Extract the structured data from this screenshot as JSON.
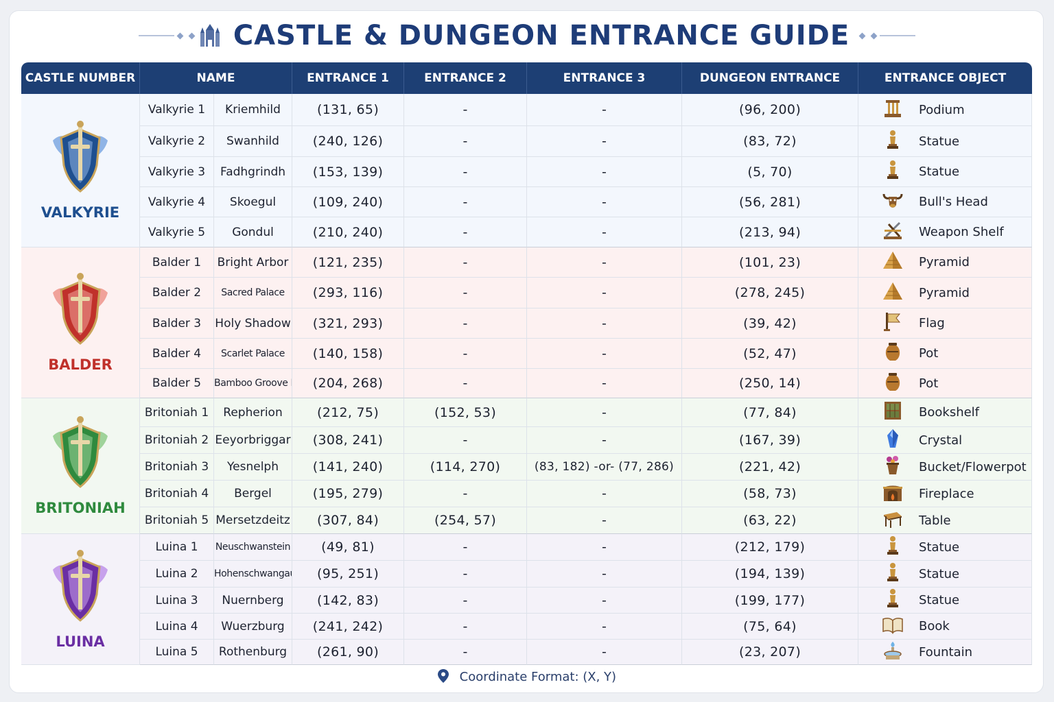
{
  "title": "CASTLE & DUNGEON ENTRANCE GUIDE",
  "footer": "Coordinate Format: (X, Y)",
  "headers": {
    "castle_number": "CASTLE NUMBER",
    "name": "NAME",
    "entrance1": "ENTRANCE 1",
    "entrance2": "ENTRANCE 2",
    "entrance3": "ENTRANCE 3",
    "dungeon": "DUNGEON ENTRANCE",
    "object": "ENTRANCE OBJECT"
  },
  "colors": {
    "header": "#1d3f74",
    "valkyrie": "#1e4f8f",
    "balder": "#c0312b",
    "britoniah": "#2f8a3e",
    "luina": "#6a2ea3"
  },
  "groups": [
    {
      "faction": "VALKYRIE",
      "emblem": "valkyrie-emblem-icon",
      "rows": [
        {
          "castle": "Valkyrie 1",
          "name": "Kriemhild",
          "e1": "(131, 65)",
          "e2": "-",
          "e3": "-",
          "dungeon": "(96, 200)",
          "object": "Podium",
          "icon": "podium-icon"
        },
        {
          "castle": "Valkyrie 2",
          "name": "Swanhild",
          "e1": "(240, 126)",
          "e2": "-",
          "e3": "-",
          "dungeon": "(83, 72)",
          "object": "Statue",
          "icon": "statue-icon"
        },
        {
          "castle": "Valkyrie 3",
          "name": "Fadhgrindh",
          "e1": "(153, 139)",
          "e2": "-",
          "e3": "-",
          "dungeon": "(5, 70)",
          "object": "Statue",
          "icon": "statue-icon"
        },
        {
          "castle": "Valkyrie 4",
          "name": "Skoegul",
          "e1": "(109, 240)",
          "e2": "-",
          "e3": "-",
          "dungeon": "(56, 281)",
          "object": "Bull's Head",
          "icon": "bulls-head-icon"
        },
        {
          "castle": "Valkyrie 5",
          "name": "Gondul",
          "e1": "(210, 240)",
          "e2": "-",
          "e3": "-",
          "dungeon": "(213, 94)",
          "object": "Weapon Shelf",
          "icon": "weapon-shelf-icon"
        }
      ]
    },
    {
      "faction": "BALDER",
      "emblem": "balder-emblem-icon",
      "rows": [
        {
          "castle": "Balder 1",
          "name": "Bright Arbor",
          "e1": "(121, 235)",
          "e2": "-",
          "e3": "-",
          "dungeon": "(101, 23)",
          "object": "Pyramid",
          "icon": "pyramid-icon"
        },
        {
          "castle": "Balder 2",
          "name": "Sacred Palace",
          "e1": "(293, 116)",
          "e2": "-",
          "e3": "-",
          "dungeon": "(278, 245)",
          "object": "Pyramid",
          "icon": "pyramid-icon"
        },
        {
          "castle": "Balder 3",
          "name": "Holy Shadow",
          "e1": "(321, 293)",
          "e2": "-",
          "e3": "-",
          "dungeon": "(39, 42)",
          "object": "Flag",
          "icon": "flag-icon"
        },
        {
          "castle": "Balder 4",
          "name": "Scarlet Palace",
          "e1": "(140, 158)",
          "e2": "-",
          "e3": "-",
          "dungeon": "(52, 47)",
          "object": "Pot",
          "icon": "pot-icon"
        },
        {
          "castle": "Balder 5",
          "name": "Bamboo Groove Hill",
          "e1": "(204, 268)",
          "e2": "-",
          "e3": "-",
          "dungeon": "(250, 14)",
          "object": "Pot",
          "icon": "pot-icon"
        }
      ]
    },
    {
      "faction": "BRITONIAH",
      "emblem": "britoniah-emblem-icon",
      "rows": [
        {
          "castle": "Britoniah 1",
          "name": "Repherion",
          "e1": "(212, 75)",
          "e2": "(152, 53)",
          "e3": "-",
          "dungeon": "(77, 84)",
          "object": "Bookshelf",
          "icon": "bookshelf-icon"
        },
        {
          "castle": "Britoniah 2",
          "name": "Eeyorbriggar",
          "e1": "(308, 241)",
          "e2": "-",
          "e3": "-",
          "dungeon": "(167, 39)",
          "object": "Crystal",
          "icon": "crystal-icon"
        },
        {
          "castle": "Britoniah 3",
          "name": "Yesnelph",
          "e1": "(141, 240)",
          "e2": "(114, 270)",
          "e3": "(83, 182) -or- (77, 286)",
          "dungeon": "(221, 42)",
          "object": "Bucket/Flowerpot",
          "icon": "flowerpot-icon"
        },
        {
          "castle": "Britoniah 4",
          "name": "Bergel",
          "e1": "(195, 279)",
          "e2": "-",
          "e3": "-",
          "dungeon": "(58, 73)",
          "object": "Fireplace",
          "icon": "fireplace-icon"
        },
        {
          "castle": "Britoniah 5",
          "name": "Mersetzdeitz",
          "e1": "(307, 84)",
          "e2": "(254, 57)",
          "e3": "-",
          "dungeon": "(63, 22)",
          "object": "Table",
          "icon": "table-icon"
        }
      ]
    },
    {
      "faction": "LUINA",
      "emblem": "luina-emblem-icon",
      "rows": [
        {
          "castle": "Luina 1",
          "name": "Neuschwanstein",
          "e1": "(49, 81)",
          "e2": "-",
          "e3": "-",
          "dungeon": "(212, 179)",
          "object": "Statue",
          "icon": "statue-icon"
        },
        {
          "castle": "Luina 2",
          "name": "Hohenschwangau",
          "e1": "(95, 251)",
          "e2": "-",
          "e3": "-",
          "dungeon": "(194, 139)",
          "object": "Statue",
          "icon": "statue-icon"
        },
        {
          "castle": "Luina 3",
          "name": "Nuernberg",
          "e1": "(142, 83)",
          "e2": "-",
          "e3": "-",
          "dungeon": "(199, 177)",
          "object": "Statue",
          "icon": "statue-icon"
        },
        {
          "castle": "Luina 4",
          "name": "Wuerzburg",
          "e1": "(241, 242)",
          "e2": "-",
          "e3": "-",
          "dungeon": "(75, 64)",
          "object": "Book",
          "icon": "book-icon"
        },
        {
          "castle": "Luina 5",
          "name": "Rothenburg",
          "e1": "(261, 90)",
          "e2": "-",
          "e3": "-",
          "dungeon": "(23, 207)",
          "object": "Fountain",
          "icon": "fountain-icon"
        }
      ]
    }
  ]
}
